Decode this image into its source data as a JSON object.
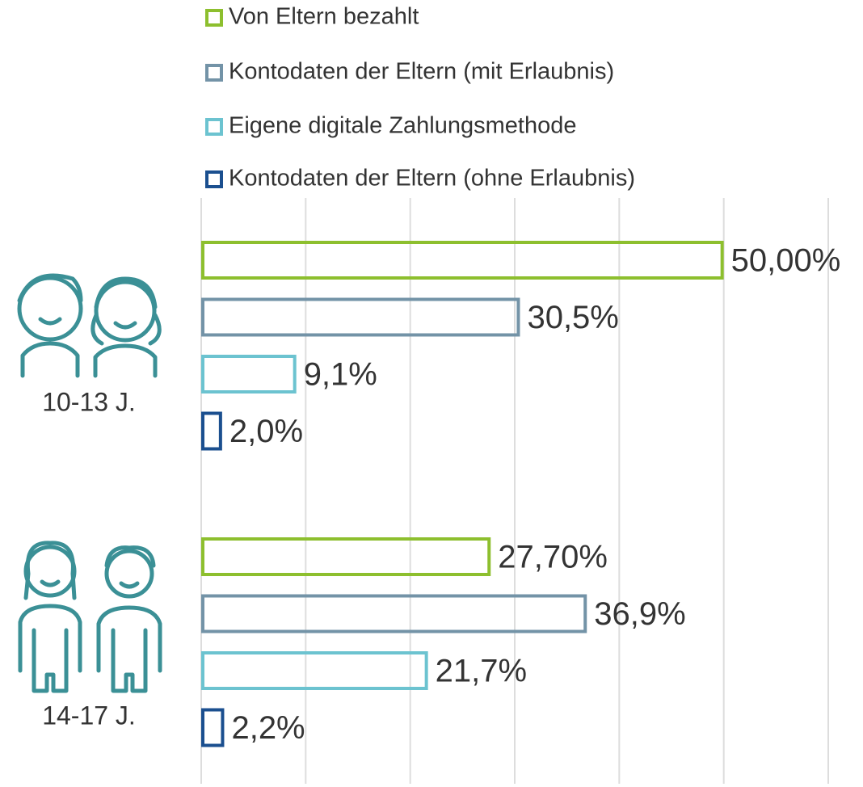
{
  "chart_data": {
    "type": "bar",
    "orientation": "horizontal",
    "categories": [
      "10-13 J.",
      "14-17 J."
    ],
    "series": [
      {
        "name": "Von Eltern bezahlt",
        "color": "#8dbf2e",
        "values": [
          50,
          27.7
        ],
        "value_labels": [
          "50,00%",
          "27,70%"
        ]
      },
      {
        "name": "Kontodaten der Eltern (mit Erlaubnis)",
        "color": "#7393a7",
        "values": [
          30.5,
          36.9
        ],
        "value_labels": [
          "30,5%",
          "36,9%"
        ]
      },
      {
        "name": "Eigene digitale Zahlungsmethode",
        "color": "#6cc3d0",
        "values": [
          9.1,
          21.7
        ],
        "value_labels": [
          "9,1%",
          "21,7%"
        ]
      },
      {
        "name": "Kontodaten der Eltern (ohne Erlaubnis)",
        "color": "#1b4f8f",
        "values": [
          2,
          2.2
        ],
        "value_labels": [
          "2,0%",
          "2,2%"
        ]
      }
    ],
    "xlim": [
      0,
      60
    ],
    "xticks": [
      0,
      10,
      20,
      30,
      40,
      50,
      60
    ],
    "grid": true
  }
}
